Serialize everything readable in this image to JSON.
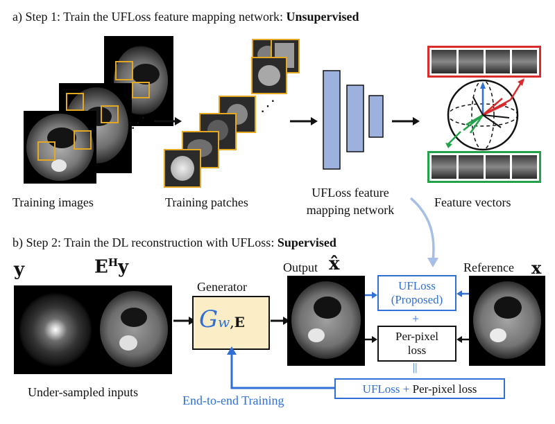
{
  "step_a": {
    "prefix": "a) Step 1: Train the UFLoss feature mapping network: ",
    "bold": "Unsupervised"
  },
  "step_b": {
    "prefix": "b) Step 2: Train the DL reconstruction with UFLoss: ",
    "bold": "Supervised"
  },
  "labels": {
    "training_images": "Training images",
    "training_patches": "Training patches",
    "network_line1": "UFLoss feature",
    "network_line2": "mapping network",
    "feature_vectors": "Feature vectors",
    "under_sampled": "Under-sampled inputs",
    "generator": "Generator",
    "output": "Output",
    "reference": "Reference",
    "end_to_end": "End-to-end Training"
  },
  "math": {
    "y": "y",
    "ehy_e": "E",
    "ehy_h": "H",
    "ehy_y": "y",
    "xhat": "x̂",
    "x": "x",
    "gen_g": "G",
    "gen_sub": "w",
    "gen_e": "E"
  },
  "boxes": {
    "ufloss_line1": "UFLoss",
    "ufloss_line2": "(Proposed)",
    "plus": "+",
    "perpixel_line1": "Per-pixel",
    "perpixel_line2": "loss",
    "equals": "||",
    "combined_ufloss": "UFLoss",
    "combined_plus": " + ",
    "combined_rest": "Per-pixel loss"
  },
  "colors": {
    "accent_blue": "#2f6fd6",
    "patch_border": "#e5a823",
    "network_fill": "#9db1de",
    "generator_fill": "#fbedc6",
    "red": "#d92b2b",
    "green": "#22a34a"
  }
}
